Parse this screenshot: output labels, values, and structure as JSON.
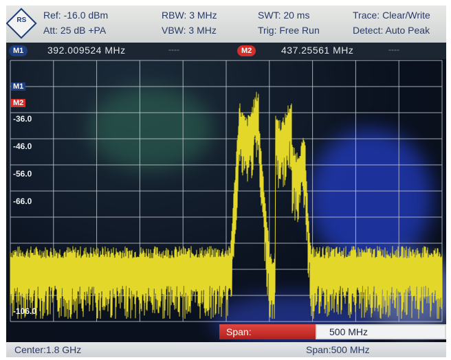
{
  "header": {
    "ref_label": "Ref",
    "ref_value": "-16.0 dBm",
    "att_label": "Att",
    "att_value": "25 dB +PA",
    "rbw_label": "RBW",
    "rbw_value": "3 MHz",
    "vbw_label": "VBW",
    "vbw_value": "3 MHz",
    "swt_label": "SWT",
    "swt_value": "20 ms",
    "trig_label": "Trig",
    "trig_value": "Free Run",
    "trace_label": "Trace",
    "trace_value": "Clear/Write",
    "detect_label": "Detect",
    "detect_value": "Auto Peak"
  },
  "markers": {
    "m1_label": "M1",
    "m1_value": "392.009524 MHz",
    "m2_label": "M2",
    "m2_value": "437.25561 MHz",
    "placeholder": "----"
  },
  "plot": {
    "y_ticks": [
      "-36.0",
      "-46.0",
      "-56.0",
      "-66.0",
      "-106.0"
    ],
    "marker_labels": [
      "M1",
      "M2"
    ]
  },
  "span_input": {
    "label": "Span:",
    "value": "500 MHz"
  },
  "footer": {
    "center": "Center:1.8 GHz",
    "span": "Span:500 MHz"
  },
  "colors": {
    "trace": "#e3d829",
    "grid": "#c9ced6",
    "m1_badge": "#1f3f80",
    "m2_badge": "#d3302a",
    "header_text": "#2a3a66"
  }
}
